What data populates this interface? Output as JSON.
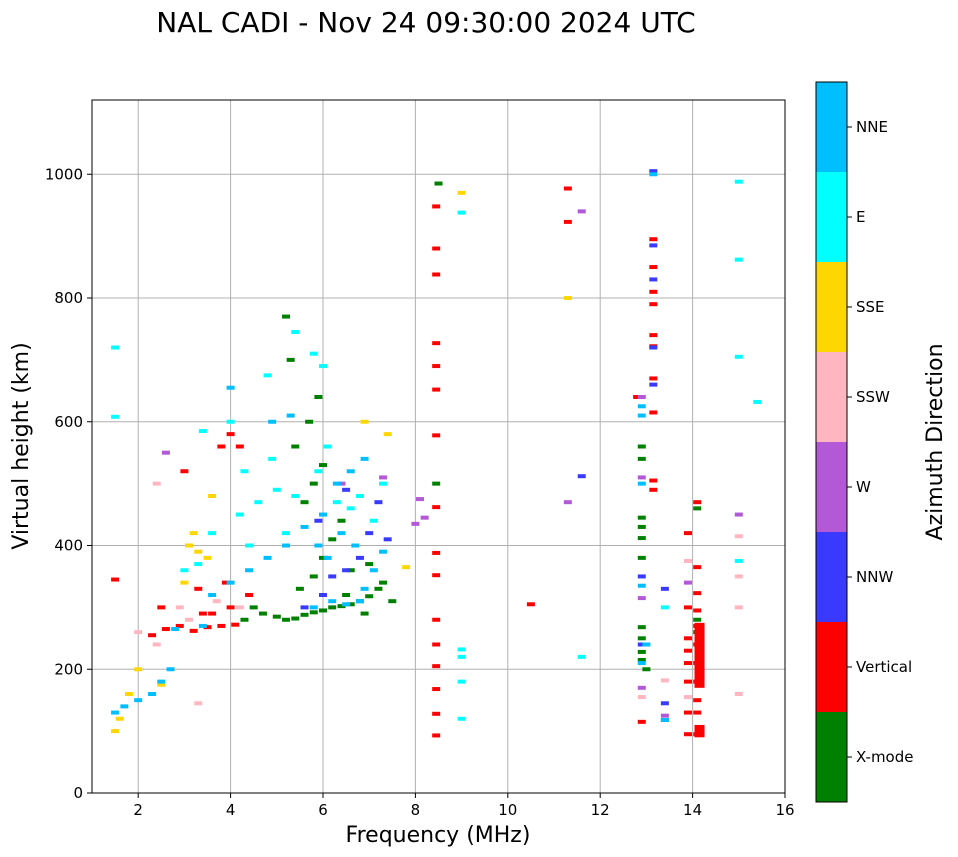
{
  "chart_data": {
    "type": "scatter",
    "title": "NAL CADI - Nov 24 09:30:00 2024 UTC",
    "xlabel": "Frequency (MHz)",
    "ylabel": "Virtual height (km)",
    "xlim": [
      1,
      16
    ],
    "ylim": [
      0,
      1120
    ],
    "xticks": [
      2,
      4,
      6,
      8,
      10,
      12,
      14,
      16
    ],
    "yticks": [
      0,
      200,
      400,
      600,
      800,
      1000
    ],
    "grid": true,
    "colorbar": {
      "title": "Azimuth Direction",
      "categories": [
        {
          "name": "X-mode",
          "color": "#008000"
        },
        {
          "name": "Vertical",
          "color": "#ff0000"
        },
        {
          "name": "NNW",
          "color": "#3a3aff"
        },
        {
          "name": "W",
          "color": "#b358d6"
        },
        {
          "name": "SSW",
          "color": "#ffb6c1"
        },
        {
          "name": "SSE",
          "color": "#ffd700"
        },
        {
          "name": "E",
          "color": "#00ffff"
        },
        {
          "name": "NNE",
          "color": "#00bfff"
        }
      ]
    },
    "series": [
      {
        "name": "X-mode",
        "points": [
          [
            5.0,
            285
          ],
          [
            5.2,
            280
          ],
          [
            5.4,
            282
          ],
          [
            5.6,
            288
          ],
          [
            5.8,
            292
          ],
          [
            6.0,
            295
          ],
          [
            6.2,
            300
          ],
          [
            6.4,
            302
          ],
          [
            6.6,
            305
          ],
          [
            6.8,
            310
          ],
          [
            7.0,
            318
          ],
          [
            7.2,
            330
          ],
          [
            7.3,
            340
          ],
          [
            5.5,
            330
          ],
          [
            5.8,
            350
          ],
          [
            6.0,
            380
          ],
          [
            6.2,
            410
          ],
          [
            6.4,
            440
          ],
          [
            5.6,
            470
          ],
          [
            5.8,
            500
          ],
          [
            6.0,
            530
          ],
          [
            5.4,
            560
          ],
          [
            5.7,
            600
          ],
          [
            5.9,
            640
          ],
          [
            5.3,
            700
          ],
          [
            5.2,
            770
          ],
          [
            6.6,
            360
          ],
          [
            7.0,
            370
          ],
          [
            4.7,
            290
          ],
          [
            4.5,
            300
          ],
          [
            8.45,
            500
          ],
          [
            8.5,
            985
          ],
          [
            12.9,
            560
          ],
          [
            12.9,
            540
          ],
          [
            12.9,
            445
          ],
          [
            12.9,
            430
          ],
          [
            12.9,
            412
          ],
          [
            12.9,
            380
          ],
          [
            12.9,
            268
          ],
          [
            12.9,
            250
          ],
          [
            12.9,
            228
          ],
          [
            12.9,
            215
          ],
          [
            13.0,
            200
          ],
          [
            14.1,
            460
          ],
          [
            14.1,
            280
          ],
          [
            14.1,
            260
          ],
          [
            7.5,
            310
          ],
          [
            6.9,
            290
          ],
          [
            6.5,
            320
          ],
          [
            4.3,
            280
          ]
        ]
      },
      {
        "name": "Vertical",
        "points": [
          [
            2.3,
            255
          ],
          [
            2.6,
            265
          ],
          [
            2.9,
            270
          ],
          [
            3.2,
            262
          ],
          [
            3.5,
            268
          ],
          [
            3.8,
            270
          ],
          [
            4.1,
            272
          ],
          [
            3.6,
            290
          ],
          [
            4.0,
            300
          ],
          [
            4.4,
            320
          ],
          [
            3.3,
            330
          ],
          [
            3.9,
            340
          ],
          [
            3.0,
            520
          ],
          [
            3.8,
            560
          ],
          [
            4.0,
            580
          ],
          [
            4.2,
            560
          ],
          [
            2.5,
            300
          ],
          [
            3.4,
            290
          ],
          [
            1.5,
            345
          ],
          [
            8.45,
            462
          ],
          [
            8.45,
            388
          ],
          [
            8.45,
            352
          ],
          [
            8.45,
            280
          ],
          [
            8.45,
            240
          ],
          [
            8.45,
            205
          ],
          [
            8.45,
            168
          ],
          [
            8.45,
            128
          ],
          [
            8.45,
            93
          ],
          [
            8.45,
            880
          ],
          [
            8.45,
            838
          ],
          [
            8.45,
            727
          ],
          [
            8.45,
            690
          ],
          [
            8.45,
            652
          ],
          [
            8.45,
            578
          ],
          [
            8.45,
            948
          ],
          [
            10.5,
            305
          ],
          [
            11.3,
            977
          ],
          [
            11.3,
            923
          ],
          [
            13.15,
            895
          ],
          [
            13.15,
            850
          ],
          [
            13.15,
            810
          ],
          [
            13.15,
            790
          ],
          [
            13.15,
            740
          ],
          [
            13.15,
            722
          ],
          [
            13.15,
            670
          ],
          [
            13.15,
            615
          ],
          [
            13.15,
            505
          ],
          [
            13.15,
            490
          ],
          [
            12.8,
            640
          ],
          [
            12.9,
            115
          ],
          [
            14.1,
            470
          ],
          [
            14.1,
            365
          ],
          [
            14.1,
            295
          ],
          [
            14.1,
            270
          ],
          [
            14.1,
            240
          ],
          [
            14.1,
            210
          ],
          [
            14.1,
            180
          ],
          [
            14.1,
            150
          ],
          [
            14.1,
            130
          ],
          [
            14.1,
            95
          ],
          [
            13.9,
            420
          ],
          [
            13.9,
            300
          ],
          [
            13.9,
            250
          ],
          [
            13.9,
            230
          ],
          [
            13.9,
            210
          ],
          [
            13.9,
            180
          ],
          [
            13.9,
            130
          ],
          [
            13.9,
            95
          ],
          [
            14.1,
            323
          ]
        ]
      },
      {
        "name": "NNW",
        "points": [
          [
            6.5,
            360
          ],
          [
            6.8,
            380
          ],
          [
            7.0,
            420
          ],
          [
            7.2,
            470
          ],
          [
            6.2,
            350
          ],
          [
            6.0,
            320
          ],
          [
            5.6,
            300
          ],
          [
            13.15,
            1005
          ],
          [
            13.15,
            885
          ],
          [
            13.15,
            830
          ],
          [
            13.15,
            720
          ],
          [
            13.15,
            660
          ],
          [
            12.9,
            350
          ],
          [
            12.9,
            240
          ],
          [
            13.4,
            330
          ],
          [
            13.4,
            145
          ],
          [
            13.4,
            118
          ],
          [
            11.6,
            512
          ],
          [
            6.5,
            490
          ],
          [
            5.9,
            440
          ],
          [
            7.4,
            410
          ]
        ]
      },
      {
        "name": "W",
        "points": [
          [
            2.6,
            550
          ],
          [
            8.0,
            435
          ],
          [
            8.2,
            445
          ],
          [
            8.1,
            475
          ],
          [
            12.9,
            510
          ],
          [
            12.9,
            640
          ],
          [
            12.9,
            315
          ],
          [
            12.9,
            170
          ],
          [
            13.4,
            125
          ],
          [
            11.3,
            470
          ],
          [
            11.6,
            940
          ],
          [
            15.0,
            450
          ],
          [
            13.9,
            340
          ],
          [
            7.3,
            510
          ],
          [
            6.4,
            500
          ]
        ]
      },
      {
        "name": "SSW",
        "points": [
          [
            2.0,
            260
          ],
          [
            2.4,
            240
          ],
          [
            3.1,
            280
          ],
          [
            3.7,
            310
          ],
          [
            4.2,
            300
          ],
          [
            2.9,
            300
          ],
          [
            15.0,
            415
          ],
          [
            15.0,
            350
          ],
          [
            15.0,
            300
          ],
          [
            15.0,
            160
          ],
          [
            13.9,
            375
          ],
          [
            13.9,
            155
          ],
          [
            12.9,
            155
          ],
          [
            13.4,
            182
          ],
          [
            2.4,
            500
          ],
          [
            3.3,
            145
          ]
        ]
      },
      {
        "name": "SSE",
        "points": [
          [
            1.5,
            100
          ],
          [
            1.8,
            160
          ],
          [
            2.0,
            200
          ],
          [
            3.1,
            400
          ],
          [
            3.3,
            390
          ],
          [
            3.5,
            380
          ],
          [
            3.0,
            340
          ],
          [
            3.6,
            480
          ],
          [
            7.8,
            365
          ],
          [
            6.9,
            600
          ],
          [
            7.4,
            580
          ],
          [
            11.3,
            800
          ],
          [
            1.6,
            120
          ],
          [
            2.5,
            175
          ],
          [
            9.0,
            970
          ],
          [
            3.2,
            420
          ]
        ]
      },
      {
        "name": "E",
        "points": [
          [
            1.5,
            720
          ],
          [
            1.5,
            608
          ],
          [
            9.0,
            938
          ],
          [
            9.0,
            232
          ],
          [
            9.0,
            220
          ],
          [
            9.0,
            180
          ],
          [
            9.0,
            120
          ],
          [
            11.6,
            220
          ],
          [
            15.0,
            988
          ],
          [
            15.0,
            862
          ],
          [
            15.0,
            705
          ],
          [
            15.4,
            632
          ],
          [
            15.0,
            375
          ],
          [
            3.0,
            360
          ],
          [
            3.3,
            370
          ],
          [
            3.6,
            420
          ],
          [
            4.2,
            450
          ],
          [
            4.6,
            470
          ],
          [
            5.0,
            490
          ],
          [
            5.4,
            480
          ],
          [
            5.9,
            520
          ],
          [
            6.3,
            470
          ],
          [
            6.8,
            480
          ],
          [
            7.3,
            500
          ],
          [
            4.3,
            520
          ],
          [
            4.9,
            540
          ],
          [
            4.8,
            675
          ],
          [
            5.4,
            745
          ],
          [
            5.8,
            710
          ],
          [
            6.0,
            690
          ],
          [
            4.4,
            400
          ],
          [
            5.2,
            420
          ],
          [
            6.1,
            560
          ],
          [
            6.6,
            460
          ],
          [
            7.1,
            440
          ],
          [
            4.0,
            600
          ],
          [
            3.4,
            585
          ],
          [
            13.4,
            300
          ]
        ]
      },
      {
        "name": "NNE",
        "points": [
          [
            1.5,
            130
          ],
          [
            1.7,
            140
          ],
          [
            2.0,
            150
          ],
          [
            2.3,
            160
          ],
          [
            2.5,
            180
          ],
          [
            2.7,
            200
          ],
          [
            5.8,
            300
          ],
          [
            6.2,
            310
          ],
          [
            6.5,
            305
          ],
          [
            6.9,
            330
          ],
          [
            7.1,
            360
          ],
          [
            7.3,
            390
          ],
          [
            6.7,
            400
          ],
          [
            6.4,
            420
          ],
          [
            6.0,
            450
          ],
          [
            5.6,
            430
          ],
          [
            5.2,
            400
          ],
          [
            4.8,
            380
          ],
          [
            4.4,
            360
          ],
          [
            4.0,
            340
          ],
          [
            3.6,
            320
          ],
          [
            6.6,
            520
          ],
          [
            6.9,
            540
          ],
          [
            4.0,
            655
          ],
          [
            4.9,
            600
          ],
          [
            5.3,
            610
          ],
          [
            6.8,
            310
          ],
          [
            12.9,
            625
          ],
          [
            12.9,
            610
          ],
          [
            12.9,
            500
          ],
          [
            12.9,
            335
          ],
          [
            13.0,
            240
          ],
          [
            12.9,
            210
          ],
          [
            3.4,
            270
          ],
          [
            2.8,
            265
          ],
          [
            13.15,
            1000
          ],
          [
            13.4,
            118
          ],
          [
            6.1,
            380
          ],
          [
            5.9,
            400
          ],
          [
            6.3,
            500
          ]
        ]
      }
    ],
    "vertical_bars": [
      {
        "name": "Vertical",
        "x": 14.15,
        "y0": 170,
        "y1": 275
      },
      {
        "name": "Vertical",
        "x": 14.15,
        "y0": 90,
        "y1": 110
      }
    ]
  }
}
